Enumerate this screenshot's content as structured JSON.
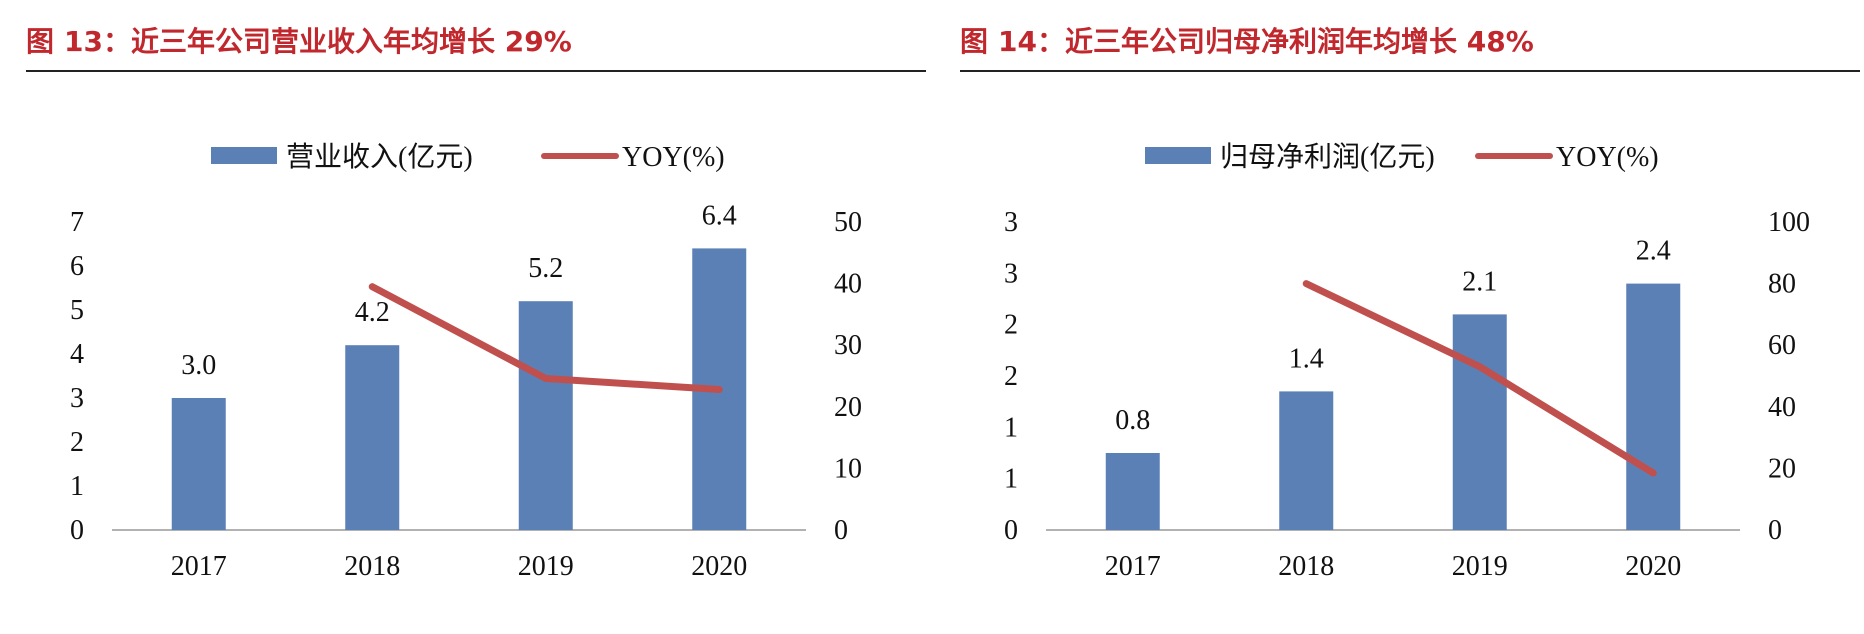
{
  "colors": {
    "bar": "#5b80b6",
    "line": "#c0504d",
    "title": "#c0282d",
    "axis": "#999999"
  },
  "chart_data": [
    {
      "type": "bar",
      "title_prefix": "图",
      "title": "13：近三年公司营业收入年均增长 29%",
      "categories": [
        "2017",
        "2018",
        "2019",
        "2020"
      ],
      "series": [
        {
          "name": "营业收入(亿元)",
          "type": "bar",
          "axis": "left",
          "values": [
            3.0,
            4.2,
            5.2,
            6.4
          ],
          "data_labels": [
            "3.0",
            "4.2",
            "5.2",
            "6.4"
          ]
        },
        {
          "name": "YOY(%)",
          "type": "line",
          "axis": "right",
          "values": [
            null,
            39.5,
            24.6,
            22.8
          ]
        }
      ],
      "y_left": {
        "min": 0,
        "max": 7,
        "ticks": [
          "0",
          "1",
          "2",
          "3",
          "4",
          "5",
          "6",
          "7"
        ]
      },
      "y_right": {
        "min": 0,
        "max": 50,
        "ticks": [
          "0",
          "10",
          "20",
          "30",
          "40",
          "50"
        ]
      },
      "legend_position": "top-center",
      "grid": false
    },
    {
      "type": "bar",
      "title_prefix": "图",
      "title": "14：近三年公司归母净利润年均增长 48%",
      "categories": [
        "2017",
        "2018",
        "2019",
        "2020"
      ],
      "series": [
        {
          "name": "归母净利润(亿元)",
          "type": "bar",
          "axis": "left",
          "values": [
            0.75,
            1.35,
            2.1,
            2.4
          ],
          "data_labels": [
            "0.8",
            "1.4",
            "2.1",
            "2.4"
          ]
        },
        {
          "name": "YOY(%)",
          "type": "line",
          "axis": "right",
          "values": [
            null,
            80,
            53,
            18.5
          ]
        }
      ],
      "y_left": {
        "min": 0,
        "max": 3,
        "ticks": [
          "0",
          "1",
          "1",
          "2",
          "2",
          "3",
          "3"
        ]
      },
      "y_right": {
        "min": 0,
        "max": 100,
        "ticks": [
          "0",
          "20",
          "40",
          "60",
          "80",
          "100"
        ]
      },
      "legend_position": "top-center",
      "grid": false
    }
  ]
}
